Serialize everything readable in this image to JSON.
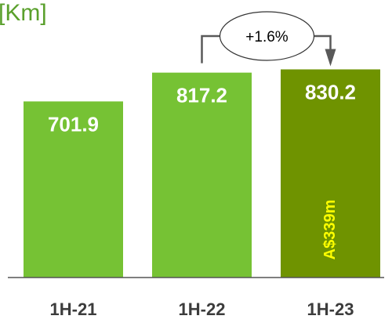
{
  "chart_data": {
    "type": "bar",
    "unit_label": "[Km]",
    "categories": [
      "1H-21",
      "1H-22",
      "1H-23"
    ],
    "values": [
      701.9,
      817.2,
      830.2
    ],
    "value_labels": [
      "701.9",
      "817.2",
      "830.2"
    ],
    "ylim": [
      0,
      1000
    ],
    "grid": false,
    "colors": {
      "bar": "#76c234",
      "highlight_bar": "#6f9300",
      "value_label": "#ffffff",
      "in_bar_label": "#ffff00",
      "axis": "#555555",
      "unit_label": "#5aa02c",
      "category_label": "#3c3c3c",
      "connector": "#595959"
    },
    "highlight_index": 2,
    "change_annotation": {
      "text": "+1.6%",
      "from": "1H-22",
      "to": "1H-23"
    },
    "in_bar_label": {
      "category": "1H-23",
      "text": "A$339m"
    }
  }
}
